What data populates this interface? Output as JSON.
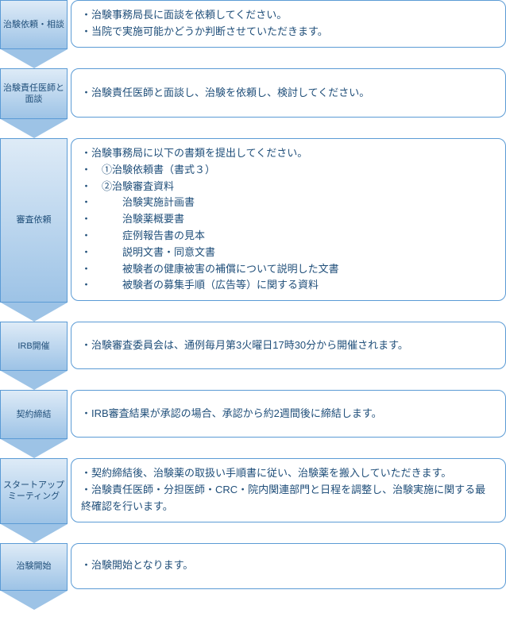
{
  "colors": {
    "border": "#5b9bd5",
    "text": "#1f4e79",
    "grad_top": "#deebf7",
    "grad_bottom": "#9dc3e6",
    "arrow_height": 24
  },
  "steps": [
    {
      "label": "治験依頼・相談",
      "box_min_height": 60,
      "lines": [
        {
          "text": "・治験事務局長に面談を依頼してください。",
          "indent": 0
        },
        {
          "text": "・当院で実施可能かどうか判断させていただきます。",
          "indent": 0
        }
      ]
    },
    {
      "label": "治験責任医師と面談",
      "box_min_height": 62,
      "lines": [
        {
          "text": "・治験責任医師と面談し、治験を依頼し、検討してください。",
          "indent": 0
        }
      ]
    },
    {
      "label": "審査依頼",
      "box_min_height": 170,
      "lines": [
        {
          "text": "・治験事務局に以下の書類を提出してください。",
          "indent": 0
        },
        {
          "text": "・　①治験依頼書（書式３）",
          "indent": 0
        },
        {
          "text": "・　②治験審査資料",
          "indent": 0
        },
        {
          "text": "・　　　治験実施計画書",
          "indent": 0
        },
        {
          "text": "・　　　治験薬概要書",
          "indent": 0
        },
        {
          "text": "・　　　症例報告書の見本",
          "indent": 0
        },
        {
          "text": "・　　　説明文書・同意文書",
          "indent": 0
        },
        {
          "text": "・　　　被験者の健康被害の補償について説明した文書",
          "indent": 0
        },
        {
          "text": "・　　　被験者の募集手順（広告等）に関する資料",
          "indent": 0
        }
      ]
    },
    {
      "label": "IRB開催",
      "box_min_height": 60,
      "lines": [
        {
          "text": "・治験審査委員会は、通例毎月第3火曜日17時30分から開催されます。",
          "indent": 0
        }
      ]
    },
    {
      "label": "契約締結",
      "box_min_height": 60,
      "lines": [
        {
          "text": "・IRB審査結果が承認の場合、承認から約2週間後に締結します。",
          "indent": 0
        }
      ]
    },
    {
      "label": "スタートアップミーティング",
      "box_min_height": 78,
      "lines": [
        {
          "text": "・契約締結後、治験薬の取扱い手順書に従い、治験薬を搬入していただきます。",
          "indent": 0
        },
        {
          "text": "・治験責任医師・分担医師・CRC・院内関連部門と日程を調整し、治験実施に関する最終確認を行います。",
          "indent": 0
        }
      ]
    },
    {
      "label": "治験開始",
      "box_min_height": 58,
      "lines": [
        {
          "text": "・治験開始となります。",
          "indent": 0
        }
      ]
    }
  ]
}
